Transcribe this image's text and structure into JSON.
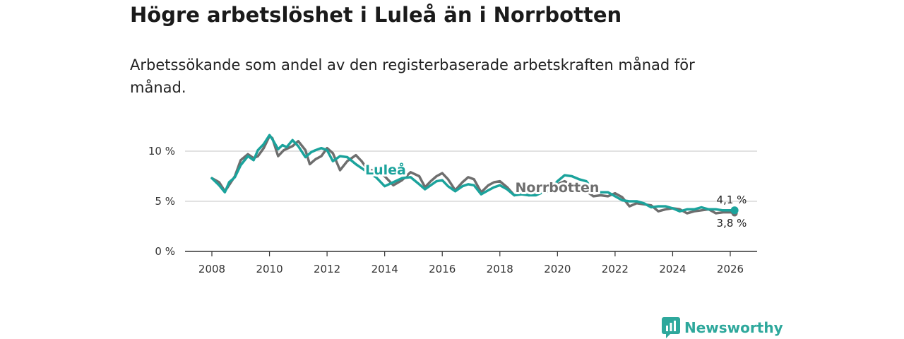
{
  "title": "Högre arbetslöshet i Luleå än i Norrbotten",
  "subtitle": "Arbetssökande som andel av den registerbaserade arbetskraften månad för månad.",
  "brand": {
    "name": "Newsworthy"
  },
  "colors": {
    "lulea": "#1ba39c",
    "norrbotten": "#6e6e6e",
    "grid": "#d9d9d9",
    "axis": "#333333"
  },
  "chart_data": {
    "type": "line",
    "title": "Högre arbetslöshet i Luleå än i Norrbotten",
    "xlabel": "",
    "ylabel": "",
    "xlim": [
      2007.7,
      2027
    ],
    "ylim": [
      0,
      10
    ],
    "y_ticks": [
      0,
      5,
      10
    ],
    "y_tick_labels": [
      "0 %",
      "5 %",
      "10 %"
    ],
    "x_ticks": [
      2008,
      2010,
      2012,
      2014,
      2016,
      2018,
      2020,
      2022,
      2024,
      2026
    ],
    "x_tick_labels": [
      "2008",
      "2010",
      "2012",
      "2014",
      "2016",
      "2018",
      "2020",
      "2022",
      "2024",
      "2026"
    ],
    "series": [
      {
        "name": "Norrbotten",
        "label": "Norrbotten",
        "end_label": "3,8 %",
        "color": "#6e6e6e",
        "x": [
          2008.0,
          2008.25,
          2008.45,
          2008.55,
          2008.8,
          2009.0,
          2009.25,
          2009.45,
          2009.6,
          2009.8,
          2010.0,
          2010.1,
          2010.3,
          2010.5,
          2010.8,
          2011.0,
          2011.25,
          2011.4,
          2011.6,
          2011.8,
          2012.0,
          2012.2,
          2012.45,
          2012.7,
          2013.0,
          2013.2,
          2013.4,
          2013.7,
          2014.0,
          2014.3,
          2014.6,
          2014.9,
          2015.2,
          2015.4,
          2015.6,
          2015.8,
          2016.0,
          2016.2,
          2016.45,
          2016.7,
          2016.9,
          2017.1,
          2017.35,
          2017.6,
          2017.8,
          2018.0,
          2018.25,
          2018.5,
          2018.75,
          2019.0,
          2019.25,
          2019.5,
          2019.75,
          2020.0,
          2020.25,
          2020.5,
          2020.75,
          2021.0,
          2021.25,
          2021.5,
          2021.75,
          2022.0,
          2022.25,
          2022.5,
          2022.75,
          2023.0,
          2023.25,
          2023.5,
          2023.75,
          2024.0,
          2024.25,
          2024.5,
          2024.75,
          2025.0,
          2025.25,
          2025.5,
          2025.75,
          2026.0,
          2026.15
        ],
        "values": [
          7.3,
          6.9,
          6.0,
          6.4,
          7.5,
          9.1,
          9.7,
          9.3,
          9.5,
          10.3,
          11.5,
          11.3,
          9.5,
          10.1,
          10.5,
          11.0,
          10.1,
          8.7,
          9.2,
          9.5,
          10.3,
          9.8,
          8.1,
          9.0,
          9.6,
          9.0,
          8.2,
          8.0,
          7.5,
          6.6,
          7.1,
          7.9,
          7.5,
          6.4,
          7.0,
          7.5,
          7.8,
          7.2,
          6.1,
          6.9,
          7.4,
          7.2,
          5.9,
          6.6,
          6.9,
          7.0,
          6.4,
          5.6,
          5.8,
          5.6,
          5.7,
          5.9,
          6.0,
          6.7,
          7.0,
          6.6,
          6.4,
          6.0,
          5.5,
          5.6,
          5.5,
          5.8,
          5.4,
          4.5,
          4.8,
          4.7,
          4.6,
          4.0,
          4.2,
          4.3,
          4.2,
          3.8,
          4.0,
          4.1,
          4.2,
          3.8,
          3.9,
          3.9,
          3.8
        ]
      },
      {
        "name": "Luleå",
        "label": "Luleå",
        "end_label": "4,1 %",
        "color": "#1ba39c",
        "x": [
          2008.0,
          2008.25,
          2008.45,
          2008.6,
          2008.8,
          2009.0,
          2009.25,
          2009.45,
          2009.6,
          2009.8,
          2010.0,
          2010.1,
          2010.3,
          2010.45,
          2010.6,
          2010.8,
          2011.0,
          2011.25,
          2011.45,
          2011.6,
          2011.8,
          2012.0,
          2012.2,
          2012.45,
          2012.7,
          2013.0,
          2013.2,
          2013.4,
          2013.7,
          2014.0,
          2014.3,
          2014.6,
          2014.9,
          2015.2,
          2015.4,
          2015.6,
          2015.8,
          2016.0,
          2016.2,
          2016.45,
          2016.7,
          2016.9,
          2017.1,
          2017.35,
          2017.6,
          2017.8,
          2018.0,
          2018.25,
          2018.5,
          2018.75,
          2019.0,
          2019.25,
          2019.5,
          2019.75,
          2020.0,
          2020.25,
          2020.5,
          2020.75,
          2021.0,
          2021.25,
          2021.5,
          2021.75,
          2022.0,
          2022.25,
          2022.5,
          2022.75,
          2023.0,
          2023.25,
          2023.5,
          2023.75,
          2024.0,
          2024.25,
          2024.5,
          2024.75,
          2025.0,
          2025.25,
          2025.5,
          2025.75,
          2026.0,
          2026.15
        ],
        "values": [
          7.3,
          6.6,
          5.9,
          6.9,
          7.4,
          8.6,
          9.5,
          9.1,
          10.1,
          10.7,
          11.6,
          11.2,
          10.2,
          10.6,
          10.4,
          11.1,
          10.5,
          9.4,
          9.9,
          10.1,
          10.3,
          10.1,
          9.0,
          9.5,
          9.4,
          8.7,
          8.3,
          7.9,
          7.4,
          6.5,
          6.9,
          7.3,
          7.4,
          6.7,
          6.2,
          6.6,
          7.0,
          7.1,
          6.5,
          6.0,
          6.5,
          6.7,
          6.6,
          5.7,
          6.1,
          6.4,
          6.6,
          6.2,
          5.6,
          5.7,
          5.6,
          5.6,
          5.9,
          6.1,
          7.0,
          7.6,
          7.5,
          7.2,
          7.0,
          6.1,
          5.9,
          5.9,
          5.5,
          5.1,
          5.0,
          5.0,
          4.8,
          4.4,
          4.5,
          4.5,
          4.3,
          4.0,
          4.2,
          4.2,
          4.4,
          4.2,
          4.2,
          4.1,
          4.1,
          4.1
        ]
      }
    ]
  }
}
